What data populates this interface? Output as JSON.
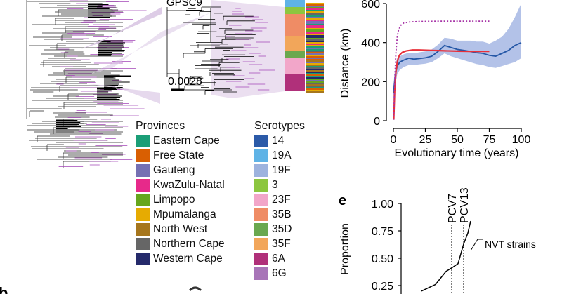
{
  "phylo": {
    "clade_label": "GPSC9",
    "scale_label": "0.0028"
  },
  "provinces": {
    "title": "Provinces",
    "items": [
      {
        "name": "Eastern Cape",
        "color": "#1b9e77"
      },
      {
        "name": "Free State",
        "color": "#d95f02"
      },
      {
        "name": "Gauteng",
        "color": "#7570b3"
      },
      {
        "name": "KwaZulu-Natal",
        "color": "#e7298a"
      },
      {
        "name": "Limpopo",
        "color": "#66a61e"
      },
      {
        "name": "Mpumalanga",
        "color": "#e6ab02"
      },
      {
        "name": "North West",
        "color": "#a6761d"
      },
      {
        "name": "Northern Cape",
        "color": "#666666"
      },
      {
        "name": "Western Cape",
        "color": "#252a6b"
      }
    ]
  },
  "serotypes": {
    "title": "Serotypes",
    "items": [
      {
        "name": "14",
        "color": "#2b5aa8"
      },
      {
        "name": "19A",
        "color": "#5fb3e6"
      },
      {
        "name": "19F",
        "color": "#9db3de"
      },
      {
        "name": "3",
        "color": "#8cc63f"
      },
      {
        "name": "23F",
        "color": "#f2a6c9"
      },
      {
        "name": "35B",
        "color": "#ef8c65"
      },
      {
        "name": "35D",
        "color": "#6aa84f"
      },
      {
        "name": "35F",
        "color": "#f2a65a"
      },
      {
        "name": "6A",
        "color": "#b0307a"
      },
      {
        "name": "6G",
        "color": "#a875b8"
      }
    ]
  },
  "chart_data": [
    {
      "type": "line",
      "xlabel": "Evolutionary time (years)",
      "ylabel": "Distance (km)",
      "xlim": [
        0,
        100
      ],
      "ylim": [
        0,
        600
      ],
      "xticks": [
        0,
        25,
        50,
        75,
        100
      ],
      "yticks": [
        0,
        200,
        400,
        600
      ],
      "series": [
        {
          "name": "blue",
          "color": "#2457a6",
          "style": "solid",
          "x": [
            0,
            1,
            2,
            3,
            5,
            8,
            12,
            16,
            20,
            25,
            30,
            35,
            40,
            45,
            50,
            55,
            60,
            65,
            70,
            75,
            80,
            85,
            90,
            95,
            100
          ],
          "y": [
            140,
            200,
            250,
            280,
            300,
            310,
            320,
            315,
            318,
            322,
            330,
            355,
            385,
            375,
            365,
            360,
            355,
            348,
            345,
            335,
            330,
            345,
            360,
            385,
            400
          ],
          "band_low": [
            100,
            150,
            200,
            240,
            260,
            275,
            285,
            285,
            288,
            292,
            300,
            320,
            345,
            330,
            320,
            310,
            300,
            290,
            285,
            275,
            270,
            280,
            290,
            300,
            320
          ],
          "band_high": [
            180,
            250,
            300,
            320,
            330,
            340,
            348,
            345,
            350,
            355,
            365,
            390,
            425,
            420,
            410,
            410,
            410,
            405,
            405,
            395,
            410,
            430,
            470,
            530,
            600
          ]
        },
        {
          "name": "red",
          "color": "#e8303a",
          "style": "solid",
          "x": [
            0.3,
            1,
            2,
            3,
            4,
            5,
            7,
            10,
            15,
            20,
            30,
            40,
            50,
            60,
            75
          ],
          "y": [
            5,
            150,
            250,
            300,
            325,
            338,
            350,
            357,
            362,
            362,
            360,
            358,
            356,
            355,
            355
          ]
        },
        {
          "name": "purple",
          "color": "#a633a6",
          "style": "dotted",
          "x": [
            0.3,
            1,
            2,
            3,
            4,
            6,
            8,
            12,
            20,
            40,
            60,
            75
          ],
          "y": [
            5,
            200,
            350,
            430,
            465,
            490,
            500,
            505,
            508,
            510,
            510,
            510
          ]
        }
      ]
    },
    {
      "type": "line",
      "panel_label": "e",
      "ylabel": "Proportion",
      "yticks_labels": [
        "1.00",
        "0.75",
        "0.50",
        "0.25"
      ],
      "yticks": [
        1.0,
        0.75,
        0.5,
        0.25
      ],
      "vlines": [
        {
          "label": "PCV7"
        },
        {
          "label": "PCV13"
        }
      ],
      "series": [
        {
          "name": "NVT strains",
          "color": "#000000",
          "y": [
            0.2,
            0.26,
            0.38,
            0.42,
            0.45,
            0.63,
            0.73,
            0.84
          ]
        }
      ]
    }
  ],
  "panel_b": {
    "label": "b"
  }
}
